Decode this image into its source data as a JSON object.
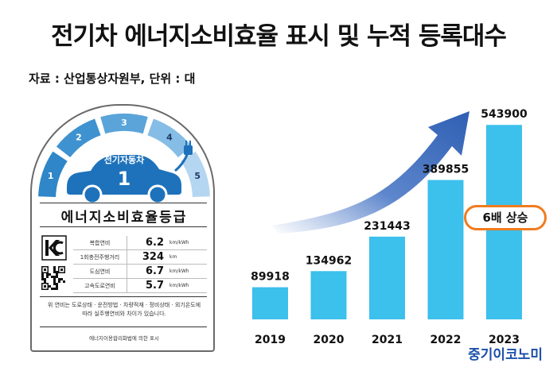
{
  "title": "전기차 에너지소비효율 표시 및 누적 등록대수",
  "source": "자료 : 산업통상자원부, 단위 : 대",
  "label_card": {
    "gauge_numbers": [
      "1",
      "2",
      "3",
      "4",
      "5"
    ],
    "car_caption": "전기자동차",
    "car_grade": "1",
    "grade_title": "에너지소비효율등급",
    "rows": [
      {
        "label": "복합연비",
        "value": "6.2",
        "unit": "km/kWh"
      },
      {
        "label": "1회충전주행거리",
        "value": "324",
        "unit": "km"
      },
      {
        "label": "도심연비",
        "value": "6.7",
        "unit": "km/kWh"
      },
      {
        "label": "고속도로연비",
        "value": "5.7",
        "unit": "km/kWh"
      }
    ],
    "note_line1": "위 연비는 도로상태 · 운전방법 · 차량적재 · 정비상태 · 외기온도에",
    "note_line2": "따라 실주행연비와 차이가 있습니다.",
    "law": "에너지이용합리화법에 의한 표시",
    "gauge_colors": [
      "#2f86c8",
      "#3f92d0",
      "#5aa4da",
      "#86bde6",
      "#b4d6f0"
    ]
  },
  "chart_data": {
    "type": "bar",
    "categories": [
      "2019",
      "2020",
      "2021",
      "2022",
      "2023"
    ],
    "values": [
      89918,
      134962,
      231443,
      389855,
      543900
    ],
    "value_labels": [
      "89918",
      "134962",
      "231443",
      "389855",
      "543900"
    ],
    "ylim": [
      0,
      560000
    ],
    "bar_color": "#3cc0ec",
    "arrow_color": "#2f5fb3",
    "annotation": "6배 상승",
    "annotation_border_color": "#f07c1f"
  },
  "brand": "중기이코노미"
}
